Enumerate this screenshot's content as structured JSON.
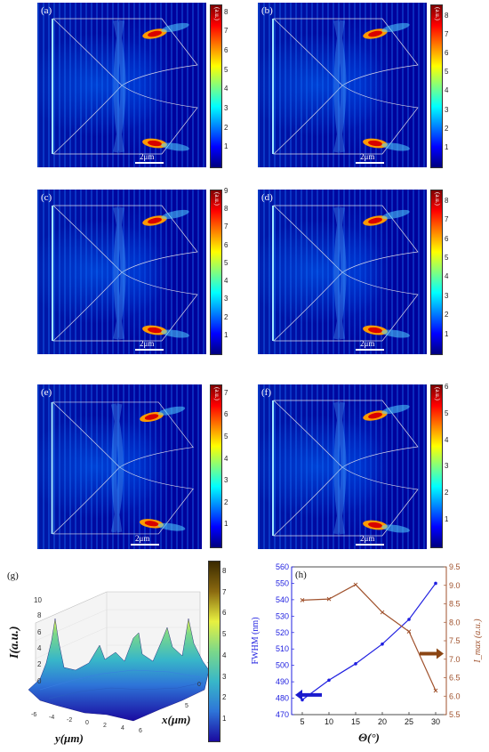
{
  "colors": {
    "jet": [
      "#00007f",
      "#0000ff",
      "#0080ff",
      "#00ffff",
      "#80ff80",
      "#ffff00",
      "#ff8000",
      "#ff0000",
      "#800000"
    ],
    "blue_line": "#1f1fe0",
    "brown_line": "#a0522d",
    "arrow_blue": "#1a1acd",
    "arrow_brown": "#8b4513"
  },
  "panels": [
    {
      "label": "(a)",
      "scale": "2μm",
      "cbar_unit": "(a.u.)",
      "ticks": [
        "1",
        "2",
        "3",
        "4",
        "5",
        "6",
        "7",
        "8"
      ],
      "max": 8.4
    },
    {
      "label": "(b)",
      "scale": "2μm",
      "cbar_unit": "(a.u.)",
      "ticks": [
        "1",
        "2",
        "3",
        "4",
        "5",
        "6",
        "7",
        "8"
      ],
      "max": 8.6
    },
    {
      "label": "(c)",
      "scale": "2μm",
      "cbar_unit": "(a.u.)",
      "ticks": [
        "1",
        "2",
        "3",
        "4",
        "5",
        "6",
        "7",
        "8",
        "9"
      ],
      "max": 9.1
    },
    {
      "label": "(d)",
      "scale": "2μm",
      "cbar_unit": "(a.u.)",
      "ticks": [
        "1",
        "2",
        "3",
        "4",
        "5",
        "6",
        "7",
        "8"
      ],
      "max": 8.6
    },
    {
      "label": "(e)",
      "scale": "2μm",
      "cbar_unit": "(a.u.)",
      "ticks": [
        "1",
        "2",
        "3",
        "4",
        "5",
        "6",
        "7"
      ],
      "max": 7.4
    },
    {
      "label": "(f)",
      "scale": "2μm",
      "cbar_unit": "(a.u.)",
      "ticks": [
        "1",
        "2",
        "3",
        "4",
        "5",
        "6"
      ],
      "max": 6.1
    }
  ],
  "panel_g": {
    "label": "(g)",
    "zlabel": "I(a.u.)",
    "xlabel": "x(μm)",
    "ylabel": "y(μm)",
    "z_ticks": [
      "0",
      "2",
      "4",
      "6",
      "8",
      "10"
    ],
    "y_ticks": [
      "-6",
      "-4",
      "-2",
      "0",
      "2",
      "4",
      "6"
    ],
    "x_ticks": [
      "-5",
      "0",
      "5"
    ],
    "cbar_ticks": [
      "1",
      "2",
      "3",
      "4",
      "5",
      "6",
      "7",
      "8"
    ]
  },
  "chart_data": {
    "type": "line",
    "label": "(h)",
    "xlabel": "Θ(°)",
    "ylabel_left": "FWHM (nm)",
    "ylabel_right": "I_max (a.u.)",
    "x": [
      5,
      10,
      15,
      20,
      25,
      30
    ],
    "xlim": [
      3,
      32
    ],
    "ylim_left": [
      470,
      560
    ],
    "ylim_right": [
      5.5,
      9.5
    ],
    "x_ticks": [
      "5",
      "10",
      "15",
      "20",
      "25",
      "30"
    ],
    "y_left_ticks": [
      "470",
      "480",
      "490",
      "500",
      "510",
      "520",
      "530",
      "540",
      "550",
      "560"
    ],
    "y_right_ticks": [
      "5.5",
      "6.0",
      "6.5",
      "7.0",
      "7.5",
      "8.0",
      "8.5",
      "9.0",
      "9.5"
    ],
    "series": [
      {
        "axis": "left",
        "color": "#1f1fe0",
        "values": [
          479,
          491,
          501,
          513,
          528,
          550
        ]
      },
      {
        "axis": "right",
        "color": "#a0522d",
        "values": [
          8.6,
          8.63,
          9.02,
          8.27,
          7.75,
          6.15
        ]
      }
    ]
  }
}
